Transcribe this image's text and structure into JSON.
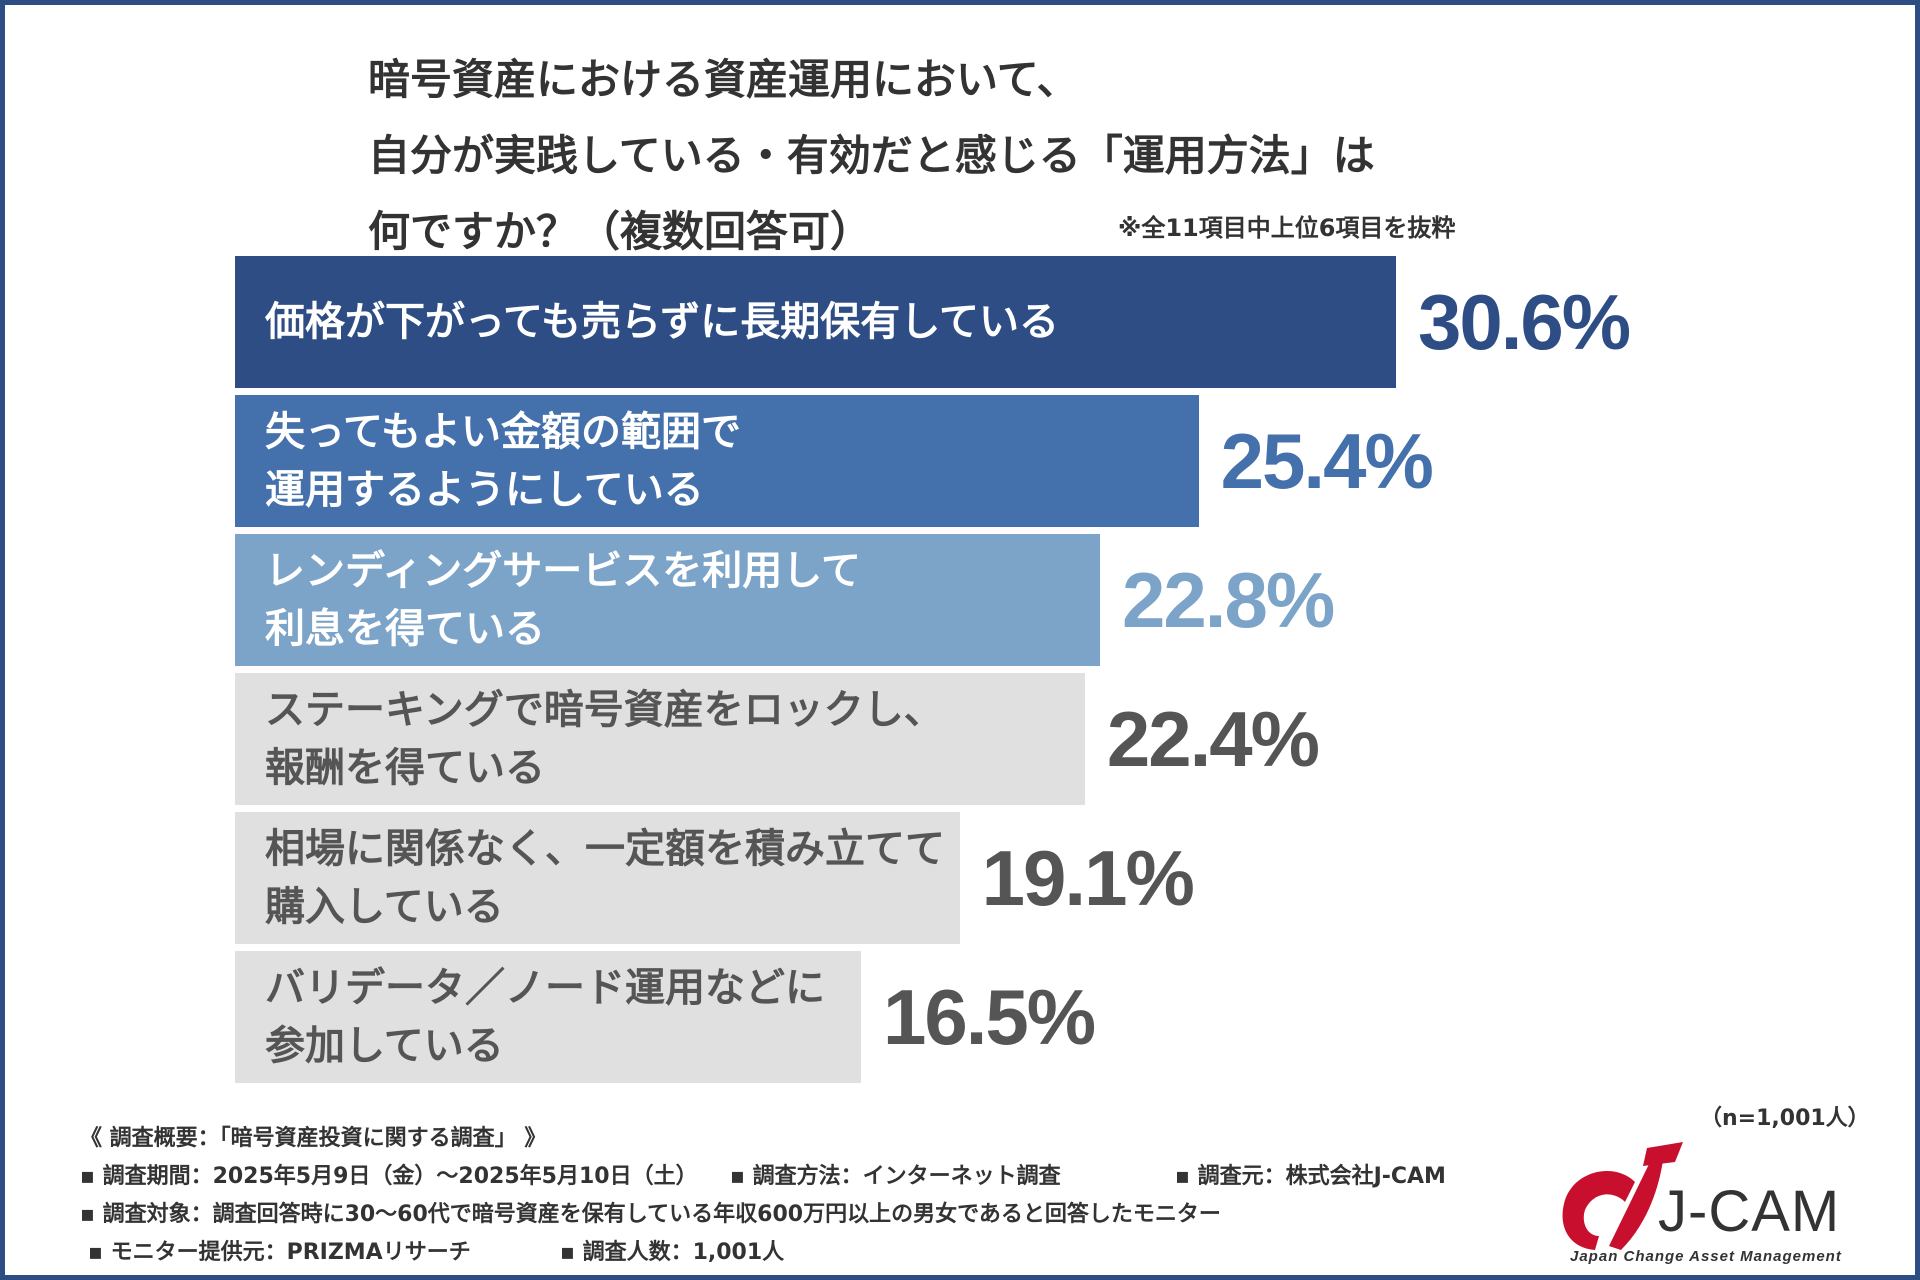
{
  "chart_data": {
    "type": "bar",
    "orientation": "horizontal",
    "title_lines": [
      "暗号資産における資産運用において、",
      "自分が実践している・有効だと感じる「運用方法」は",
      "何ですか？（複数回答可）"
    ],
    "note": "※全11項目中上位6項目を抜粋",
    "unit": "%",
    "items": [
      {
        "label_lines": [
          "価格が下がっても売らずに長期保有している"
        ],
        "value": 30.6,
        "value_label": "30.6%",
        "bar_color": "#2d4d84",
        "text_color": "#ffffff",
        "value_color": "#2d4d84"
      },
      {
        "label_lines": [
          "失ってもよい金額の範囲で",
          "運用するようにしている"
        ],
        "value": 25.4,
        "value_label": "25.4%",
        "bar_color": "#4470ab",
        "text_color": "#ffffff",
        "value_color": "#4470ab"
      },
      {
        "label_lines": [
          "レンディングサービスを利用して",
          "利息を得ている"
        ],
        "value": 22.8,
        "value_label": "22.8%",
        "bar_color": "#7ca3c8",
        "text_color": "#ffffff",
        "value_color": "#7ca3c8"
      },
      {
        "label_lines": [
          "ステーキングで暗号資産をロックし、",
          "報酬を得ている"
        ],
        "value": 22.4,
        "value_label": "22.4%",
        "bar_color": "#e0e0e0",
        "text_color": "#555555",
        "value_color": "#555555"
      },
      {
        "label_lines": [
          "相場に関係なく、一定額を積み立てて",
          "購入している"
        ],
        "value": 19.1,
        "value_label": "19.1%",
        "bar_color": "#e0e0e0",
        "text_color": "#555555",
        "value_color": "#555555"
      },
      {
        "label_lines": [
          "バリデータ／ノード運用などに",
          "参加している"
        ],
        "value": 16.5,
        "value_label": "16.5%",
        "bar_color": "#e0e0e0",
        "text_color": "#555555",
        "value_color": "#555555"
      }
    ]
  },
  "survey": {
    "heading": "《 調査概要：「暗号資産投資に関する調査」 》",
    "period": "▪ 調査期間：2025年5月9日（金）〜2025年5月10日（土）",
    "method": "▪ 調査方法：インターネット調査",
    "source": "▪ 調査元：株式会社J-CAM",
    "target": "▪ 調査対象：調査回答時に30〜60代で暗号資産を保有している年収600万円以上の男女であると回答したモニター",
    "provider": "▪ モニター提供元：PRIZMAリサーチ",
    "count": "▪ 調査人数：1,001人"
  },
  "sample_size": "（n=1,001人）",
  "logo": {
    "name": "J-CAM",
    "tagline": "Japan Change Asset Management",
    "red": "#c8102e"
  }
}
